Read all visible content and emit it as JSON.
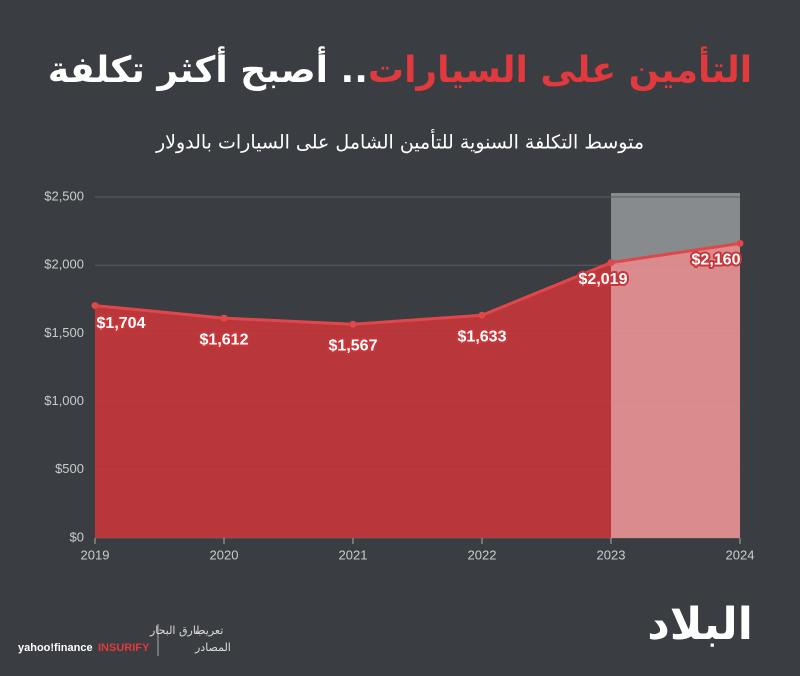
{
  "chart_data": {
    "type": "area",
    "title_highlight": "التأمين على السيارات",
    "title_rest": ".. أصبح أكثر تكلفة",
    "subtitle": "متوسط التكلفة السنوية للتأمين الشامل على السيارات بالدولار",
    "categories": [
      "2019",
      "2020",
      "2021",
      "2022",
      "2023",
      "2024"
    ],
    "values": [
      1704,
      1612,
      1567,
      1633,
      2019,
      2160
    ],
    "value_labels": [
      "$1,704",
      "$1,612",
      "$1,567",
      "$1,633",
      "$2,019",
      "$2,160"
    ],
    "color": "#c8363a",
    "ylim": [
      0,
      2500
    ],
    "yticks": [
      {
        "value": 0,
        "label": "$0"
      },
      {
        "value": 500,
        "label": "$500"
      },
      {
        "value": 1000,
        "label": "$1,000"
      },
      {
        "value": 1500,
        "label": "$1,500"
      },
      {
        "value": 2000,
        "label": "$2,000"
      },
      {
        "value": 2500,
        "label": "$2,500"
      }
    ],
    "grid": true
  },
  "footer": {
    "credit_label": "تعريب",
    "credit_name": "طارق البحار",
    "sources_label": "المصادر",
    "source_1": "yahoo!finance",
    "source_2": "INSURIFY",
    "logo": "البلاد"
  }
}
